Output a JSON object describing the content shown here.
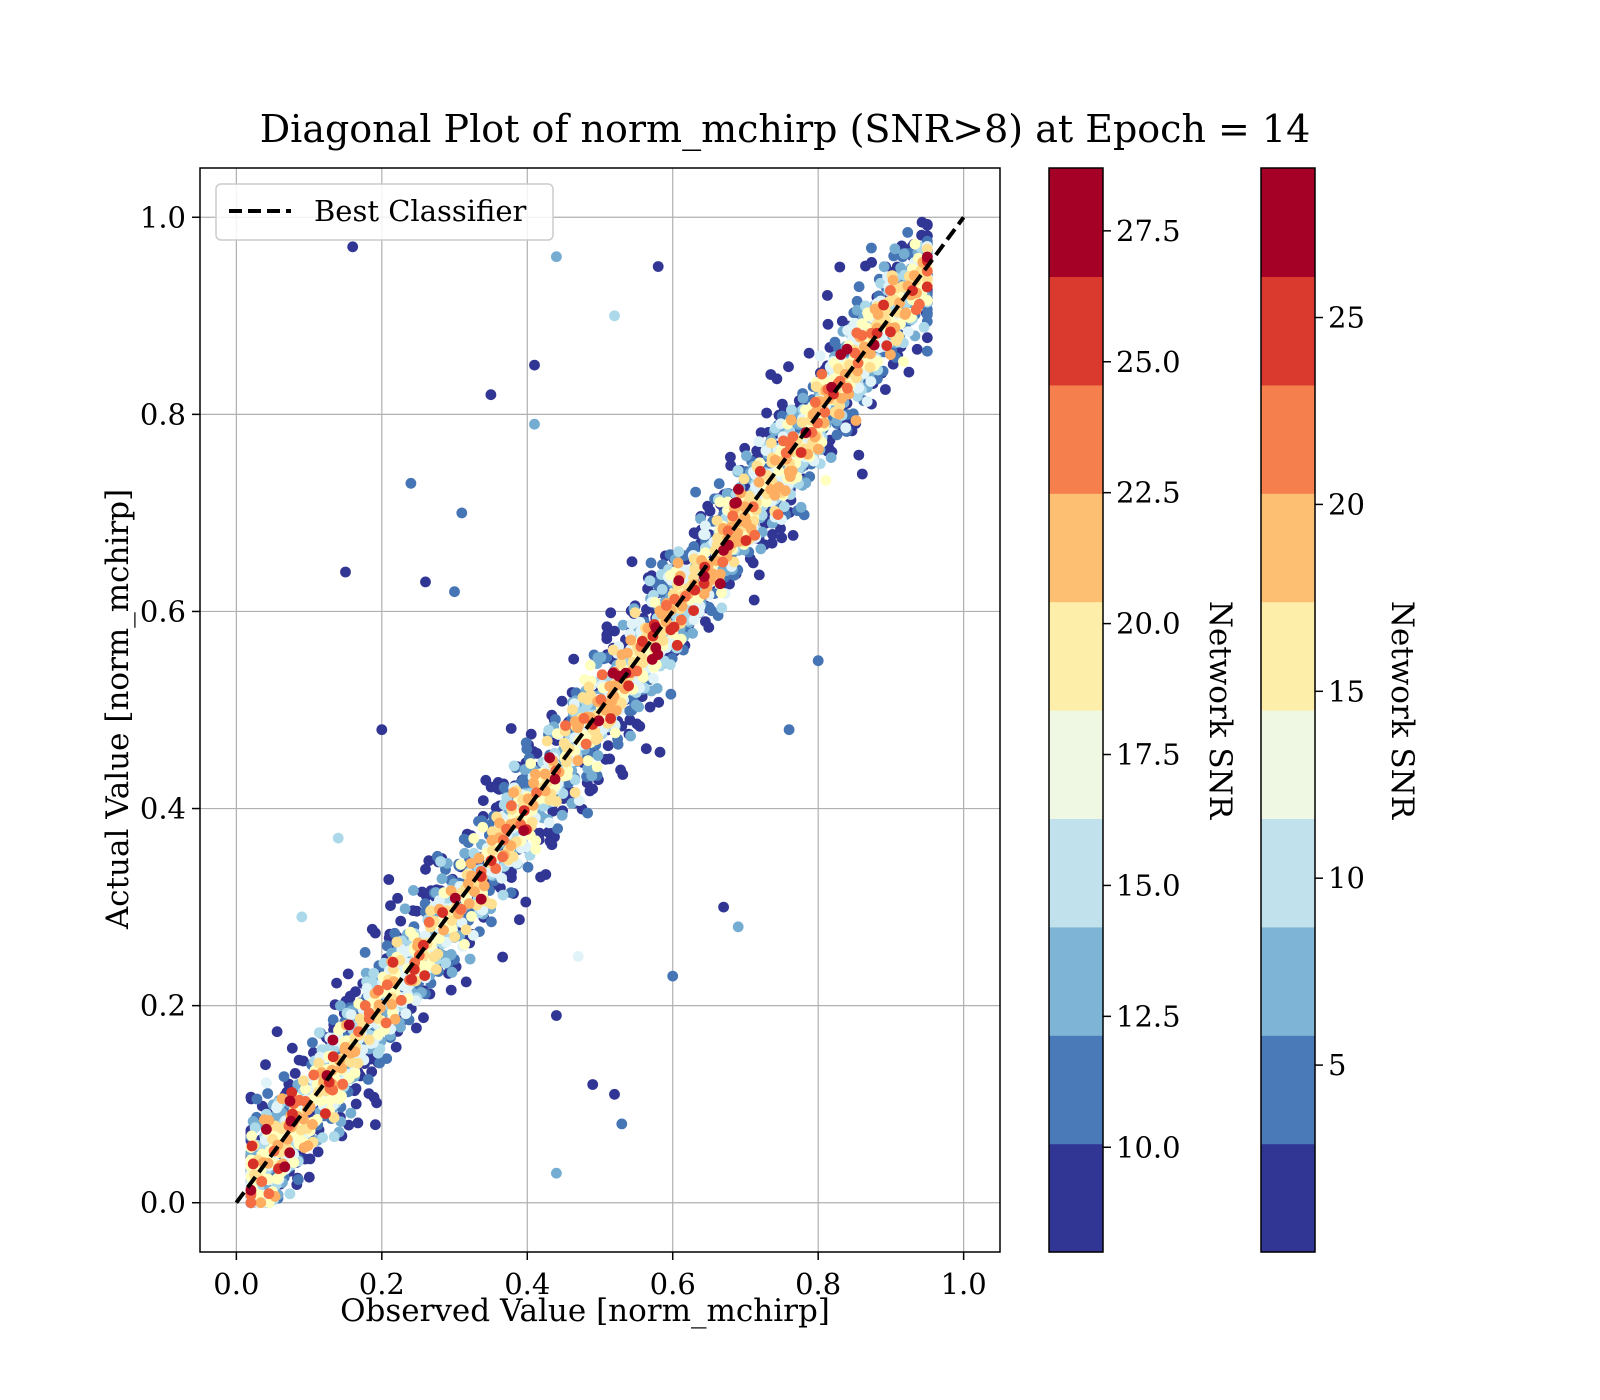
{
  "chart_data": {
    "type": "scatter",
    "title": "Diagonal Plot of norm_mchirp (SNR>8) at Epoch = 14",
    "xlabel": "Observed Value [norm_mchirp]",
    "ylabel": "Actual Value [norm_mchirp]",
    "xlim": [
      -0.05,
      1.05
    ],
    "ylim": [
      -0.05,
      1.05
    ],
    "xticks": [
      "0.0",
      "0.2",
      "0.4",
      "0.6",
      "0.8",
      "1.0"
    ],
    "yticks": [
      "0.0",
      "0.2",
      "0.4",
      "0.6",
      "0.8",
      "1.0"
    ],
    "grid": true,
    "legend": {
      "position": "upper-left",
      "entries": [
        "Best Classifier"
      ]
    },
    "reference_line": {
      "name": "Best Classifier",
      "x": [
        0.0,
        1.0
      ],
      "y": [
        0.0,
        1.0
      ],
      "style": "dashed",
      "color": "#000000"
    },
    "point_series": {
      "color_by": "Network SNR",
      "approx_count": 4000,
      "distribution": "scattered around y = x, wider spread at low SNR",
      "outliers": [
        {
          "x": 0.16,
          "y": 0.97,
          "snr": 8.5
        },
        {
          "x": 0.44,
          "y": 0.96,
          "snr": 13
        },
        {
          "x": 0.24,
          "y": 0.73,
          "snr": 11
        },
        {
          "x": 0.15,
          "y": 0.64,
          "snr": 8.5
        },
        {
          "x": 0.35,
          "y": 0.82,
          "snr": 9
        },
        {
          "x": 0.41,
          "y": 0.85,
          "snr": 9
        },
        {
          "x": 0.41,
          "y": 0.79,
          "snr": 12
        },
        {
          "x": 0.31,
          "y": 0.7,
          "snr": 11
        },
        {
          "x": 0.26,
          "y": 0.63,
          "snr": 9
        },
        {
          "x": 0.3,
          "y": 0.62,
          "snr": 10
        },
        {
          "x": 0.58,
          "y": 0.95,
          "snr": 9
        },
        {
          "x": 0.52,
          "y": 0.9,
          "snr": 14
        },
        {
          "x": 0.69,
          "y": 0.28,
          "snr": 13
        },
        {
          "x": 0.6,
          "y": 0.23,
          "snr": 11
        },
        {
          "x": 0.53,
          "y": 0.08,
          "snr": 11
        },
        {
          "x": 0.52,
          "y": 0.11,
          "snr": 9
        },
        {
          "x": 0.44,
          "y": 0.03,
          "snr": 13
        },
        {
          "x": 0.8,
          "y": 0.55,
          "snr": 11
        },
        {
          "x": 0.09,
          "y": 0.29,
          "snr": 14
        },
        {
          "x": 0.14,
          "y": 0.37,
          "snr": 15
        },
        {
          "x": 0.2,
          "y": 0.48,
          "snr": 9
        },
        {
          "x": 0.67,
          "y": 0.3,
          "snr": 9
        },
        {
          "x": 0.76,
          "y": 0.48,
          "snr": 11
        },
        {
          "x": 0.44,
          "y": 0.19,
          "snr": 9
        },
        {
          "x": 0.49,
          "y": 0.12,
          "snr": 9
        },
        {
          "x": 0.47,
          "y": 0.25,
          "snr": 16
        }
      ]
    },
    "colorbars": [
      {
        "label": "Network SNR",
        "cmap": "RdYlBu_r",
        "range": [
          8,
          28.7
        ],
        "ticks": [
          "10.0",
          "12.5",
          "15.0",
          "17.5",
          "20.0",
          "22.5",
          "25.0",
          "27.5"
        ],
        "tick_values": [
          10.0,
          12.5,
          15.0,
          17.5,
          20.0,
          22.5,
          25.0,
          27.5
        ]
      },
      {
        "label": "Network SNR",
        "cmap": "RdYlBu_r",
        "range": [
          0,
          29
        ],
        "ticks": [
          "5",
          "10",
          "15",
          "20",
          "25"
        ],
        "tick_values": [
          5,
          10,
          15,
          20,
          25
        ]
      }
    ],
    "colormap_levels": [
      "#313695",
      "#4575b4",
      "#74add1",
      "#abd9e9",
      "#e0f3f8",
      "#ffffbf",
      "#fee090",
      "#fdae61",
      "#f46d43",
      "#d73027",
      "#a50026"
    ],
    "colorbar_bands": [
      "#313695",
      "#4a7ab7",
      "#7eb5d6",
      "#c1e2ec",
      "#eff8e3",
      "#fdeea9",
      "#fdbf71",
      "#f57f4d",
      "#d93a2d",
      "#a50026"
    ]
  }
}
